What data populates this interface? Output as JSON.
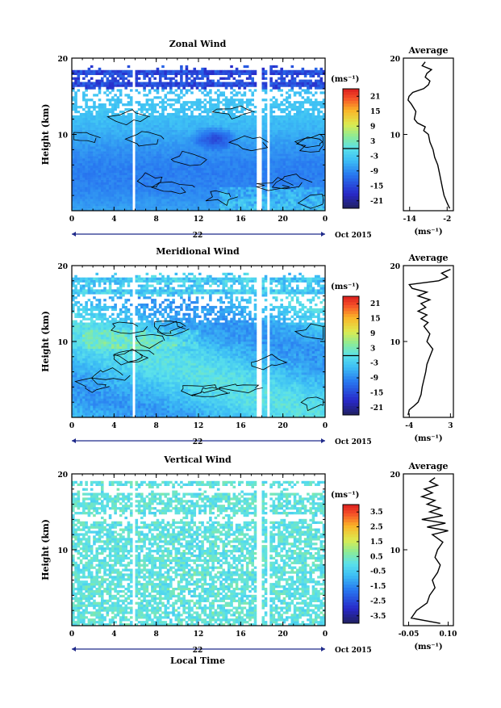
{
  "chart_data": [
    {
      "type": "heatmap",
      "title": "Zonal Wind",
      "ylabel": "Height (km)",
      "ylim": [
        0,
        20
      ],
      "yticks": [
        "20",
        "10"
      ],
      "xlim": [
        0,
        24
      ],
      "xticks": [
        "0",
        "4",
        "8",
        "12",
        "16",
        "20",
        "0"
      ],
      "day_label": "22",
      "date_label": "Oct 2015",
      "colorbar": {
        "unit": "(ms⁻¹)",
        "ticks": [
          "21",
          "15",
          "9",
          "3",
          "-3",
          "-9",
          "-15",
          "-21"
        ],
        "range": [
          -24,
          24
        ],
        "zero_line": 0
      },
      "gaps_hours": [
        [
          5.8,
          6.1
        ],
        [
          17.6,
          18.0
        ],
        [
          18.4,
          18.7
        ]
      ],
      "cloud_top_km": [
        17.8,
        17.6,
        17.3,
        17.5,
        17.9,
        17.7,
        17.5,
        17.8,
        17.6,
        17.9,
        17.4,
        17.7,
        17.8
      ],
      "zonal_cells_desc": "mostly -3 to -9 below 12 km, stronger -15 near 12-14 LT around 9-11 km, weak westerly (3) bands near surface after 16 LT",
      "profile": {
        "title": "Average",
        "xticks": [
          "-14",
          "-2"
        ],
        "xlim": [
          -16,
          0
        ],
        "xunit": "(ms⁻¹)",
        "yticks": [
          "20",
          "10"
        ],
        "height_km": [
          0.3,
          1,
          2,
          3,
          4,
          5,
          6,
          7,
          8,
          9,
          10,
          10.5,
          11,
          11.5,
          12,
          13,
          14,
          14.5,
          15,
          15.5,
          16,
          16.5,
          17,
          17.5,
          18,
          18.5,
          19,
          19.5
        ],
        "values": [
          -1.2,
          -2.0,
          -3.0,
          -3.5,
          -4.0,
          -4.5,
          -5.0,
          -6.0,
          -6.5,
          -7.5,
          -8.0,
          -9.5,
          -9.0,
          -11.5,
          -12.5,
          -12.0,
          -13.5,
          -14.5,
          -14.2,
          -13.0,
          -9.5,
          -8.0,
          -7.5,
          -9.0,
          -8.5,
          -7.0,
          -10.0,
          -9.0
        ]
      }
    },
    {
      "type": "heatmap",
      "title": "Meridional Wind",
      "ylabel": "Height (km)",
      "ylim": [
        0,
        20
      ],
      "yticks": [
        "20",
        "10"
      ],
      "xlim": [
        0,
        24
      ],
      "xticks": [
        "0",
        "4",
        "8",
        "12",
        "16",
        "20",
        "0"
      ],
      "day_label": "22",
      "date_label": "Oct 2015",
      "colorbar": {
        "unit": "(ms⁻¹)",
        "ticks": [
          "21",
          "15",
          "9",
          "3",
          "-3",
          "-9",
          "-15",
          "-21"
        ],
        "range": [
          -24,
          24
        ],
        "zero_line": 0
      },
      "gaps_hours": [
        [
          5.8,
          6.1
        ],
        [
          17.6,
          18.0
        ],
        [
          18.4,
          18.7
        ]
      ],
      "profile": {
        "title": "Average",
        "xticks": [
          "-4",
          "3"
        ],
        "xlim": [
          -5,
          3.5
        ],
        "xunit": "(ms⁻¹)",
        "yticks": [
          "20",
          "10"
        ],
        "height_km": [
          0.3,
          1,
          1.5,
          2,
          3,
          4,
          5,
          6,
          7,
          8,
          9,
          9.5,
          10,
          11,
          12,
          12.5,
          13,
          13.5,
          14,
          14.5,
          15,
          15.5,
          16,
          16.5,
          17,
          17.5,
          18,
          18.5,
          19,
          19.5
        ],
        "values": [
          -4.2,
          -4.0,
          -3.2,
          -2.5,
          -2.0,
          -1.8,
          -1.5,
          -1.2,
          -1.0,
          -0.5,
          0.0,
          -0.5,
          -1.0,
          -0.5,
          -1.5,
          -0.8,
          -2.0,
          -1.0,
          -2.5,
          -1.2,
          -2.0,
          -0.5,
          -2.5,
          -1.0,
          -3.5,
          -4.0,
          1.0,
          2.5,
          1.5,
          3.0
        ]
      }
    },
    {
      "type": "heatmap",
      "title": "Vertical Wind",
      "ylabel": "Height (km)",
      "xlabel": "Local Time",
      "ylim": [
        0,
        20
      ],
      "yticks": [
        "20",
        "10"
      ],
      "xlim": [
        0,
        24
      ],
      "xticks": [
        "0",
        "4",
        "8",
        "12",
        "16",
        "20",
        "0"
      ],
      "day_label": "22",
      "date_label": "Oct 2015",
      "colorbar": {
        "unit": "(ms⁻¹)",
        "ticks": [
          "3.5",
          "2.5",
          "1.5",
          "0.5",
          "-0.5",
          "-1.5",
          "-2.5",
          "-3.5"
        ],
        "range": [
          -4,
          4
        ]
      },
      "gaps_hours": [
        [
          5.8,
          6.1
        ],
        [
          17.6,
          18.0
        ],
        [
          18.4,
          18.7
        ]
      ],
      "profile": {
        "title": "Average",
        "xticks": [
          "-0.05",
          "0.10"
        ],
        "xlim": [
          -0.07,
          0.12
        ],
        "xunit": "(ms⁻¹)",
        "yticks": [
          "20",
          "10"
        ],
        "height_km": [
          0.3,
          1,
          2,
          3,
          4,
          5,
          6,
          7,
          8,
          9,
          10,
          11,
          12,
          12.5,
          13,
          13.5,
          14,
          14.5,
          15,
          15.5,
          16,
          16.5,
          17,
          17.5,
          18,
          18.5,
          19,
          19.5
        ],
        "values": [
          0.07,
          -0.04,
          -0.02,
          0.02,
          0.03,
          0.05,
          0.04,
          0.06,
          0.07,
          0.05,
          0.06,
          0.08,
          0.04,
          0.1,
          0.02,
          0.09,
          0.0,
          0.08,
          0.03,
          0.07,
          0.02,
          0.05,
          0.0,
          0.04,
          0.01,
          0.06,
          0.03,
          0.05
        ]
      }
    }
  ]
}
